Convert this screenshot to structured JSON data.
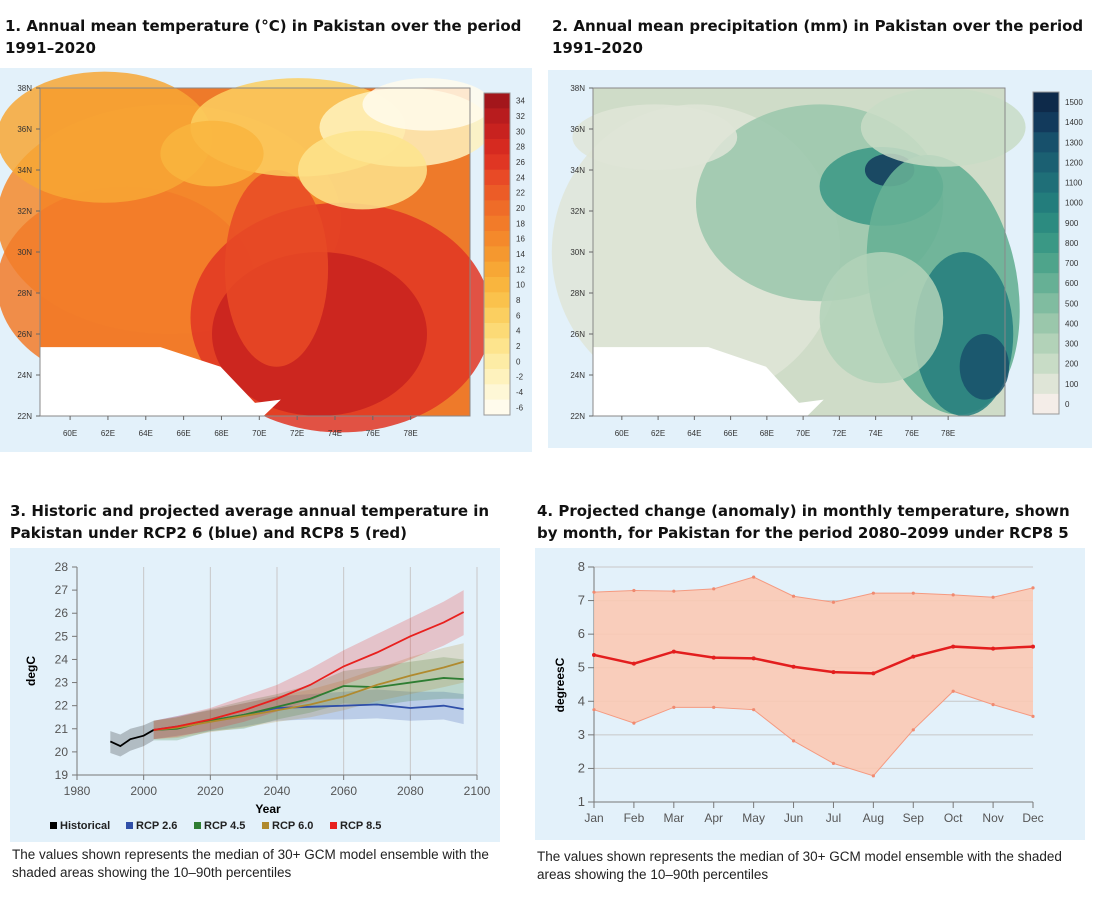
{
  "panels": {
    "p1_title": "1. Annual mean temperature (°C) in Pakistan over the period 1991–2020",
    "p2_title": "2. Annual mean precipitation (mm) in Pakistan over the period 1991–2020",
    "p3_title": "3. Historic and projected average annual temperature in Pakistan under RCP2 6 (blue) and RCP8 5 (red)",
    "p4_title": "4. Projected change (anomaly) in monthly temperature, shown by month, for Pakistan for the period 2080–2099 under RCP8 5",
    "p3_caption": "The values shown represents the median of 30+ GCM model ensemble with the shaded areas showing the 10–90th percentiles",
    "p4_caption": "The values shown represents the median of 30+ GCM model ensemble with the shaded areas showing the 10–90th percentiles"
  },
  "chart_data": [
    {
      "type": "heatmap",
      "title": "Annual mean temperature (°C)",
      "lat_ticks": [
        "38N",
        "36N",
        "34N",
        "32N",
        "30N",
        "28N",
        "26N",
        "24N",
        "22N"
      ],
      "lon_ticks": [
        "60E",
        "62E",
        "64E",
        "66E",
        "68E",
        "70E",
        "72E",
        "74E",
        "76E",
        "78E"
      ],
      "colorbar": [
        "34",
        "32",
        "30",
        "28",
        "26",
        "24",
        "22",
        "20",
        "18",
        "16",
        "14",
        "12",
        "10",
        "8",
        "6",
        "4",
        "2",
        "0",
        "-2",
        "-4",
        "-6"
      ],
      "colors": [
        "#a3161b",
        "#b81c1e",
        "#c8221f",
        "#d62a20",
        "#e03623",
        "#e84a26",
        "#ec5c27",
        "#ef6c28",
        "#f27b29",
        "#f4892b",
        "#f5982f",
        "#f7a735",
        "#f9b53e",
        "#fac24c",
        "#fbcf60",
        "#fcda76",
        "#fde48d",
        "#fdeca5",
        "#fef2bd",
        "#fef7d6",
        "#fffbec"
      ]
    },
    {
      "type": "heatmap",
      "title": "Annual mean precipitation (mm)",
      "lat_ticks": [
        "38N",
        "36N",
        "34N",
        "32N",
        "30N",
        "28N",
        "26N",
        "24N",
        "22N"
      ],
      "lon_ticks": [
        "60E",
        "62E",
        "64E",
        "66E",
        "68E",
        "70E",
        "72E",
        "74E",
        "76E",
        "78E"
      ],
      "colorbar": [
        "1500",
        "1400",
        "1300",
        "1200",
        "1100",
        "1000",
        "900",
        "800",
        "700",
        "600",
        "500",
        "400",
        "300",
        "200",
        "100",
        "0"
      ],
      "colors": [
        "#0e2a4a",
        "#123a5c",
        "#17506b",
        "#1b6072",
        "#1f6f78",
        "#237d7c",
        "#2c8b80",
        "#3a9885",
        "#4ea48b",
        "#66b095",
        "#80bca0",
        "#9ac7ab",
        "#b2d2b8",
        "#c8dcc6",
        "#dfe5d7",
        "#f4ede8"
      ]
    },
    {
      "type": "line",
      "xlabel": "Year",
      "ylabel": "degC",
      "xlim": [
        1980,
        2100
      ],
      "ylim": [
        19,
        28
      ],
      "xticks": [
        "1980",
        "2000",
        "2020",
        "2040",
        "2060",
        "2080",
        "2100"
      ],
      "yticks": [
        "19",
        "20",
        "21",
        "22",
        "23",
        "24",
        "25",
        "26",
        "27",
        "28"
      ],
      "series": [
        {
          "name": "Historical",
          "color": "#000000",
          "x": [
            1990,
            1993,
            1996,
            2000,
            2003
          ],
          "median": [
            20.45,
            20.25,
            20.55,
            20.7,
            20.95
          ],
          "lower": [
            19.95,
            19.8,
            20.05,
            20.25,
            20.5
          ],
          "upper": [
            20.9,
            20.75,
            21.0,
            21.15,
            21.35
          ]
        },
        {
          "name": "RCP 2.6",
          "color": "#2f4fa8",
          "x": [
            2003,
            2010,
            2020,
            2030,
            2040,
            2050,
            2060,
            2070,
            2080,
            2090,
            2096
          ],
          "median": [
            20.95,
            21.1,
            21.35,
            21.6,
            21.9,
            21.95,
            22.0,
            22.05,
            21.9,
            22.0,
            21.85
          ],
          "lower": [
            20.55,
            20.7,
            20.9,
            21.1,
            21.35,
            21.4,
            21.4,
            21.45,
            21.35,
            21.4,
            21.2
          ],
          "upper": [
            21.35,
            21.55,
            21.8,
            22.1,
            22.4,
            22.5,
            22.6,
            22.7,
            22.6,
            22.6,
            22.5
          ]
        },
        {
          "name": "RCP 4.5",
          "color": "#2e7d32",
          "x": [
            2003,
            2010,
            2020,
            2030,
            2040,
            2050,
            2060,
            2070,
            2080,
            2090,
            2096
          ],
          "median": [
            20.95,
            21.0,
            21.35,
            21.6,
            21.95,
            22.3,
            22.85,
            22.8,
            23.0,
            23.2,
            23.15
          ],
          "lower": [
            20.5,
            20.5,
            20.9,
            21.0,
            21.4,
            21.7,
            22.1,
            22.0,
            22.2,
            22.3,
            22.3
          ],
          "upper": [
            21.35,
            21.5,
            21.85,
            22.2,
            22.5,
            22.9,
            23.5,
            23.7,
            23.9,
            24.1,
            24.0
          ]
        },
        {
          "name": "RCP 6.0",
          "color": "#b08a2e",
          "x": [
            2003,
            2010,
            2020,
            2030,
            2040,
            2050,
            2060,
            2070,
            2080,
            2090,
            2096
          ],
          "median": [
            20.95,
            21.05,
            21.3,
            21.55,
            21.8,
            22.05,
            22.4,
            22.9,
            23.3,
            23.65,
            23.9
          ],
          "lower": [
            20.55,
            20.6,
            20.85,
            21.05,
            21.3,
            21.5,
            21.8,
            22.2,
            22.5,
            22.8,
            23.0
          ],
          "upper": [
            21.35,
            21.5,
            21.8,
            22.1,
            22.4,
            22.7,
            23.1,
            23.6,
            24.1,
            24.5,
            24.7
          ]
        },
        {
          "name": "RCP 8.5",
          "color": "#e8201e",
          "x": [
            2003,
            2010,
            2020,
            2030,
            2040,
            2050,
            2060,
            2070,
            2080,
            2090,
            2096
          ],
          "median": [
            20.95,
            21.1,
            21.4,
            21.8,
            22.3,
            22.9,
            23.7,
            24.3,
            25.0,
            25.6,
            26.05
          ],
          "lower": [
            20.55,
            20.65,
            20.95,
            21.3,
            21.75,
            22.2,
            22.9,
            23.4,
            24.0,
            24.6,
            25.05
          ],
          "upper": [
            21.35,
            21.55,
            21.9,
            22.4,
            22.9,
            23.6,
            24.4,
            25.1,
            25.8,
            26.5,
            27.0
          ]
        }
      ]
    },
    {
      "type": "area",
      "xlabel": "",
      "ylabel": "degreesC",
      "ylim": [
        1,
        8
      ],
      "categories": [
        "Jan",
        "Feb",
        "Mar",
        "Apr",
        "May",
        "Jun",
        "Jul",
        "Aug",
        "Sep",
        "Oct",
        "Nov",
        "Dec"
      ],
      "yticks": [
        "1",
        "2",
        "3",
        "4",
        "5",
        "6",
        "7",
        "8"
      ],
      "median": [
        5.38,
        5.12,
        5.48,
        5.3,
        5.28,
        5.03,
        4.87,
        4.83,
        5.33,
        5.63,
        5.57,
        5.63
      ],
      "upper": [
        7.25,
        7.3,
        7.28,
        7.35,
        7.7,
        7.13,
        6.95,
        7.22,
        7.22,
        7.17,
        7.1,
        7.38
      ],
      "lower": [
        3.75,
        3.35,
        3.82,
        3.82,
        3.75,
        2.82,
        2.15,
        1.78,
        3.15,
        4.3,
        3.9,
        3.55
      ]
    }
  ]
}
